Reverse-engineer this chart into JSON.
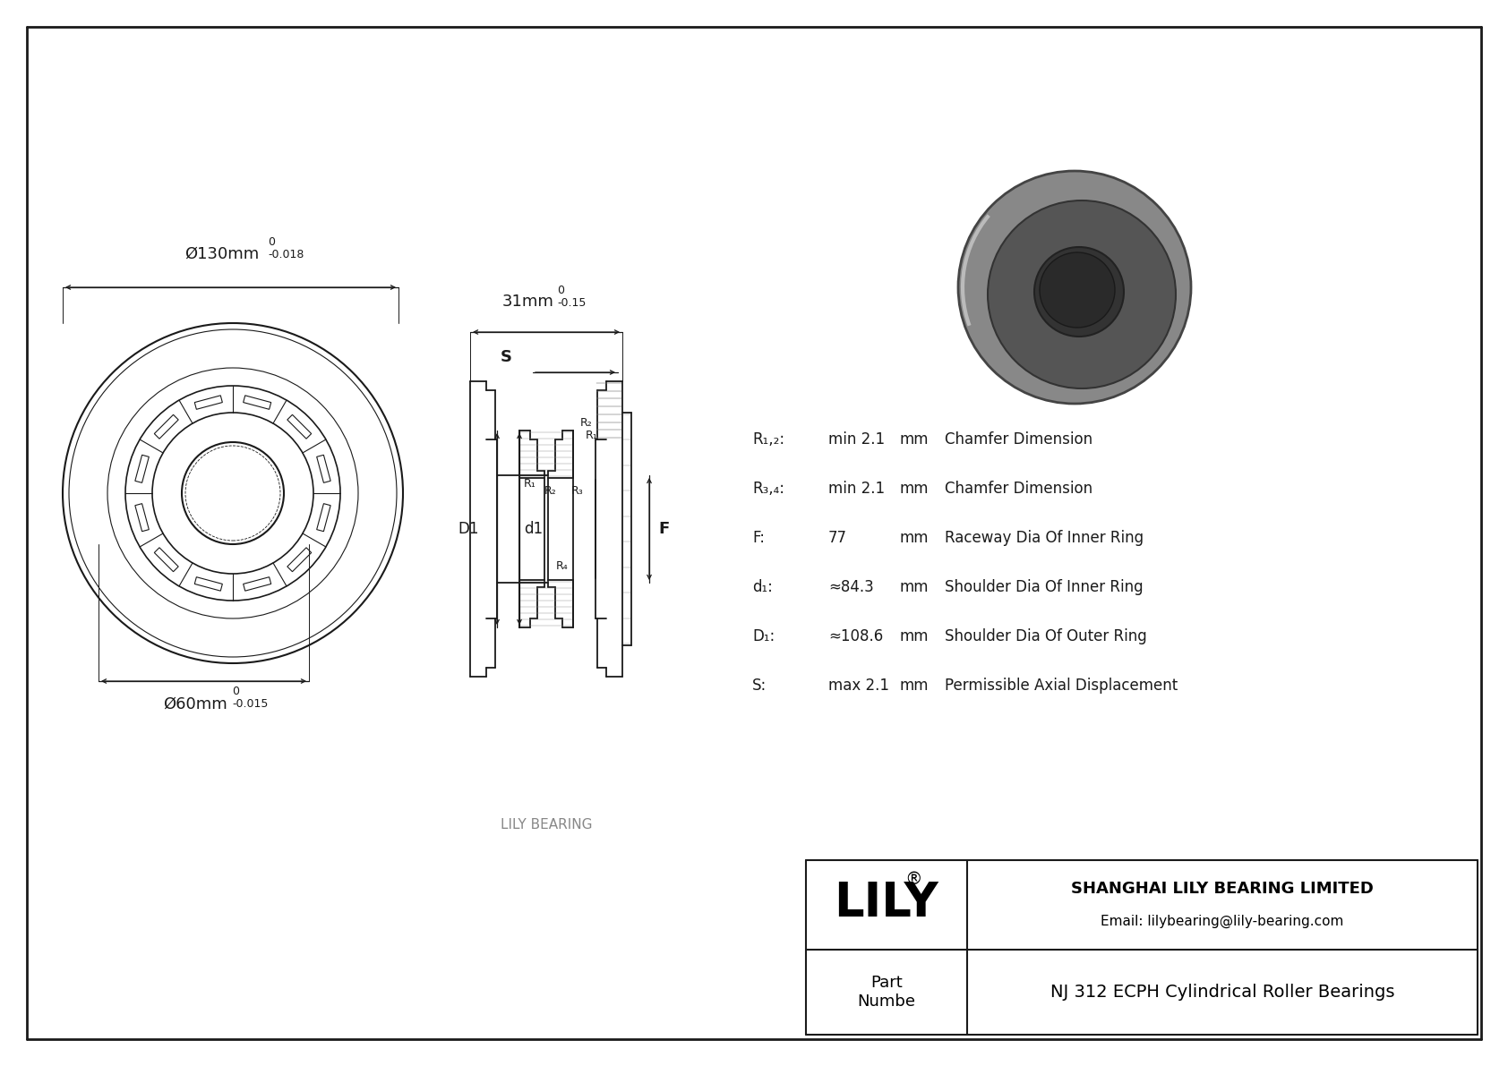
{
  "bg_color": "#ffffff",
  "border_color": "#000000",
  "drawing_color": "#1a1a1a",
  "title": "NJ 312 ECPH Cylindrical Roller Bearings",
  "company": "SHANGHAI LILY BEARING LIMITED",
  "email": "Email: lilybearing@lily-bearing.com",
  "lily_text": "LILY",
  "part_label": "Part\nNumbe",
  "watermark": "LILY BEARING",
  "dim_outer": "Ø130mm",
  "dim_outer_tol": "-0.018",
  "dim_outer_tol_upper": "0",
  "dim_inner": "Ø60mm",
  "dim_inner_tol": "-0.015",
  "dim_inner_tol_upper": "0",
  "dim_width": "31mm",
  "dim_width_tol": "-0.15",
  "dim_width_tol_upper": "0",
  "dim_S": "S",
  "param_rows": [
    [
      "R₁,₂:",
      "min 2.1",
      "mm",
      "Chamfer Dimension"
    ],
    [
      "R₃,₄:",
      "min 2.1",
      "mm",
      "Chamfer Dimension"
    ],
    [
      "F:",
      "77",
      "mm",
      "Raceway Dia Of Inner Ring"
    ],
    [
      "d₁:",
      "≈84.3",
      "mm",
      "Shoulder Dia Of Inner Ring"
    ],
    [
      "D₁:",
      "≈108.6",
      "mm",
      "Shoulder Dia Of Outer Ring"
    ],
    [
      "S:",
      "max 2.1",
      "mm",
      "Permissible Axial Displacement"
    ]
  ]
}
